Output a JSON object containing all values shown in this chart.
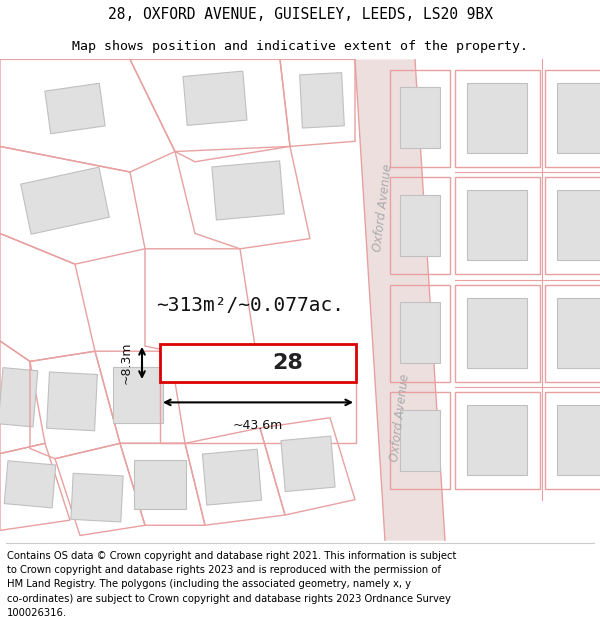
{
  "title_line1": "28, OXFORD AVENUE, GUISELEY, LEEDS, LS20 9BX",
  "title_line2": "Map shows position and indicative extent of the property.",
  "footer_lines": [
    "Contains OS data © Crown copyright and database right 2021. This information is subject",
    "to Crown copyright and database rights 2023 and is reproduced with the permission of",
    "HM Land Registry. The polygons (including the associated geometry, namely x, y",
    "co-ordinates) are subject to Crown copyright and database rights 2023 Ordnance Survey",
    "100026316."
  ],
  "area_text": "~313m²/~0.077ac.",
  "width_text": "~43.6m",
  "depth_text": "~8.3m",
  "property_number": "28",
  "map_bg": "#ffffff",
  "plot_line_color": "#e8a0a0",
  "road_color": "#eedfdf",
  "road_edge": "#e8a0a0",
  "highlight_color": "#dd0000",
  "building_fill": "#e0e0e0",
  "building_edge": "#c0c0c0",
  "street_label_color": "#aaaaaa",
  "street_label": "Oxford Avenue",
  "title_fontsize": 10.5,
  "subtitle_fontsize": 9.5,
  "footer_fontsize": 7.2
}
